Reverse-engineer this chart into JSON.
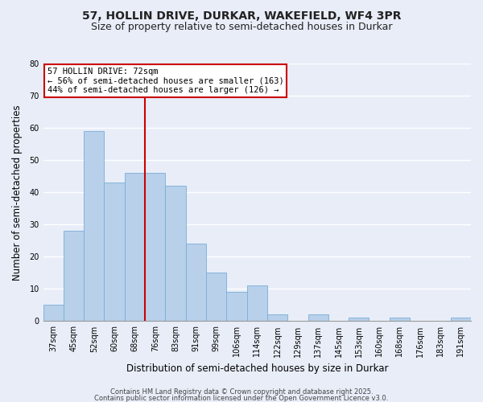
{
  "title": "57, HOLLIN DRIVE, DURKAR, WAKEFIELD, WF4 3PR",
  "subtitle": "Size of property relative to semi-detached houses in Durkar",
  "xlabel": "Distribution of semi-detached houses by size in Durkar",
  "ylabel": "Number of semi-detached properties",
  "bins": [
    "37sqm",
    "45sqm",
    "52sqm",
    "60sqm",
    "68sqm",
    "76sqm",
    "83sqm",
    "91sqm",
    "99sqm",
    "106sqm",
    "114sqm",
    "122sqm",
    "129sqm",
    "137sqm",
    "145sqm",
    "153sqm",
    "160sqm",
    "168sqm",
    "176sqm",
    "183sqm",
    "191sqm"
  ],
  "values": [
    5,
    28,
    59,
    43,
    46,
    46,
    42,
    24,
    15,
    9,
    11,
    2,
    0,
    2,
    0,
    1,
    0,
    1,
    0,
    0,
    1
  ],
  "bar_color": "#b8d0ea",
  "bar_edge_color": "#7aaed6",
  "vline_bin_index": 5,
  "vline_color": "#cc0000",
  "annotation_lines": [
    "57 HOLLIN DRIVE: 72sqm",
    "← 56% of semi-detached houses are smaller (163)",
    "44% of semi-detached houses are larger (126) →"
  ],
  "annotation_box_color": "#cc0000",
  "ylim": [
    0,
    80
  ],
  "yticks": [
    0,
    10,
    20,
    30,
    40,
    50,
    60,
    70,
    80
  ],
  "bg_color": "#e8edf8",
  "grid_color": "#ffffff",
  "footer1": "Contains HM Land Registry data © Crown copyright and database right 2025.",
  "footer2": "Contains public sector information licensed under the Open Government Licence v3.0.",
  "title_fontsize": 10,
  "subtitle_fontsize": 9,
  "axis_label_fontsize": 8.5,
  "tick_fontsize": 7,
  "annotation_fontsize": 7.5,
  "footer_fontsize": 6
}
